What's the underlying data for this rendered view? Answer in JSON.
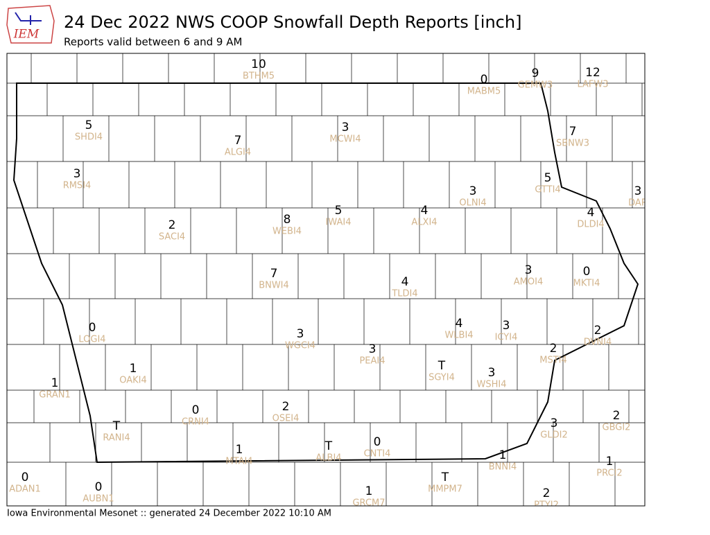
{
  "header": {
    "logo_text": "IEM",
    "title": "24 Dec 2022 NWS COOP Snowfall Depth Reports [inch]",
    "subtitle": "Reports valid between 6 and 9 AM"
  },
  "footer": "Iowa Environmental Mesonet :: generated 24 December 2022 10:10 AM",
  "stations": [
    {
      "value": "10",
      "id": "BTHM5"
    },
    {
      "value": "0",
      "id": "MABM5"
    },
    {
      "value": "9",
      "id": "GEMW3"
    },
    {
      "value": "12",
      "id": "LAFW3"
    },
    {
      "value": "5",
      "id": "SHDI4"
    },
    {
      "value": "7",
      "id": "ALGI4"
    },
    {
      "value": "3",
      "id": "MCWI4"
    },
    {
      "value": "7",
      "id": "SBNW3"
    },
    {
      "value": "3",
      "id": "RMSI4"
    },
    {
      "value": "5",
      "id": "GTTI4"
    },
    {
      "value": "3",
      "id": "DAR"
    },
    {
      "value": "3",
      "id": "OLNI4"
    },
    {
      "value": "4",
      "id": "DLDI4"
    },
    {
      "value": "2",
      "id": "SACI4"
    },
    {
      "value": "8",
      "id": "WEBI4"
    },
    {
      "value": "5",
      "id": "IWAI4"
    },
    {
      "value": "4",
      "id": "ALXI4"
    },
    {
      "value": "7",
      "id": "BNWI4"
    },
    {
      "value": "4",
      "id": "TLDI4"
    },
    {
      "value": "3",
      "id": "AMOI4"
    },
    {
      "value": "0",
      "id": "MKTI4"
    },
    {
      "value": "0",
      "id": "LOGI4"
    },
    {
      "value": "3",
      "id": "WGCI4"
    },
    {
      "value": "4",
      "id": "WLBI4"
    },
    {
      "value": "3",
      "id": "ICYI4"
    },
    {
      "value": "2",
      "id": "DVNI4"
    },
    {
      "value": "3",
      "id": "PEAI4"
    },
    {
      "value": "2",
      "id": "MSTI4"
    },
    {
      "value": "1",
      "id": "OAKI4"
    },
    {
      "value": "T",
      "id": "SGYI4"
    },
    {
      "value": "3",
      "id": "WSHI4"
    },
    {
      "value": "1",
      "id": "GRAN1"
    },
    {
      "value": "0",
      "id": "CRNI4"
    },
    {
      "value": "2",
      "id": "OSEI4"
    },
    {
      "value": "3",
      "id": "GLDI2"
    },
    {
      "value": "2",
      "id": "GBGI2"
    },
    {
      "value": "T",
      "id": "RANI4"
    },
    {
      "value": "1",
      "id": "MTAI4"
    },
    {
      "value": "T",
      "id": "ALBI4"
    },
    {
      "value": "0",
      "id": "CNTI4"
    },
    {
      "value": "1",
      "id": "BNNI4"
    },
    {
      "value": "1",
      "id": "PRCI2"
    },
    {
      "value": "T",
      "id": "MMPM7"
    },
    {
      "value": "0",
      "id": "ADAN1"
    },
    {
      "value": "0",
      "id": "AUBN1"
    },
    {
      "value": "1",
      "id": "GRCM7"
    },
    {
      "value": "2",
      "id": "PTYI2"
    }
  ]
}
